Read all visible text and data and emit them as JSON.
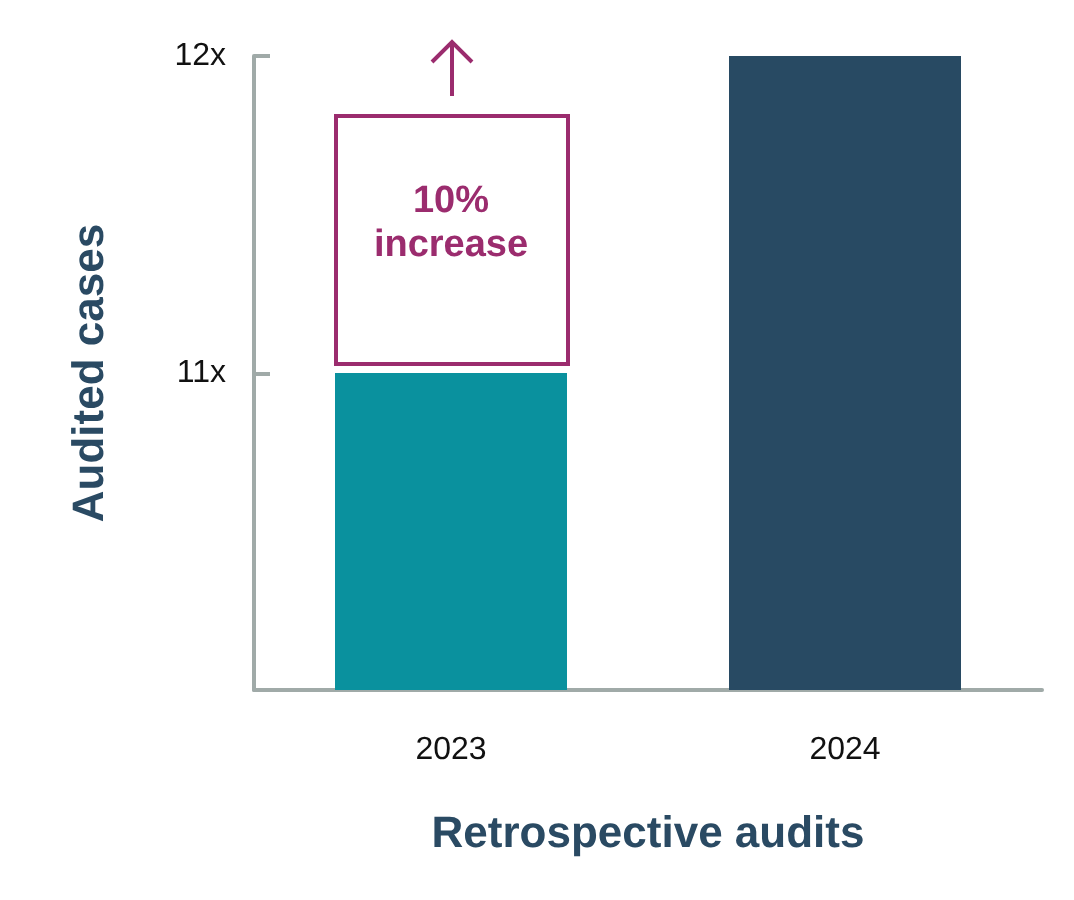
{
  "chart_data": {
    "type": "bar",
    "categories": [
      "2023",
      "2024"
    ],
    "values": [
      11,
      12
    ],
    "colors": [
      "#0a919e",
      "#284a63"
    ],
    "xlabel": "Retrospective audits",
    "ylabel": "Audited cases",
    "ylim": [
      10,
      12
    ],
    "yticks": [
      {
        "value": 11,
        "label": "11x"
      },
      {
        "value": 12,
        "label": "12x"
      }
    ],
    "grid": false,
    "annotations": [
      "10% increase"
    ]
  }
}
